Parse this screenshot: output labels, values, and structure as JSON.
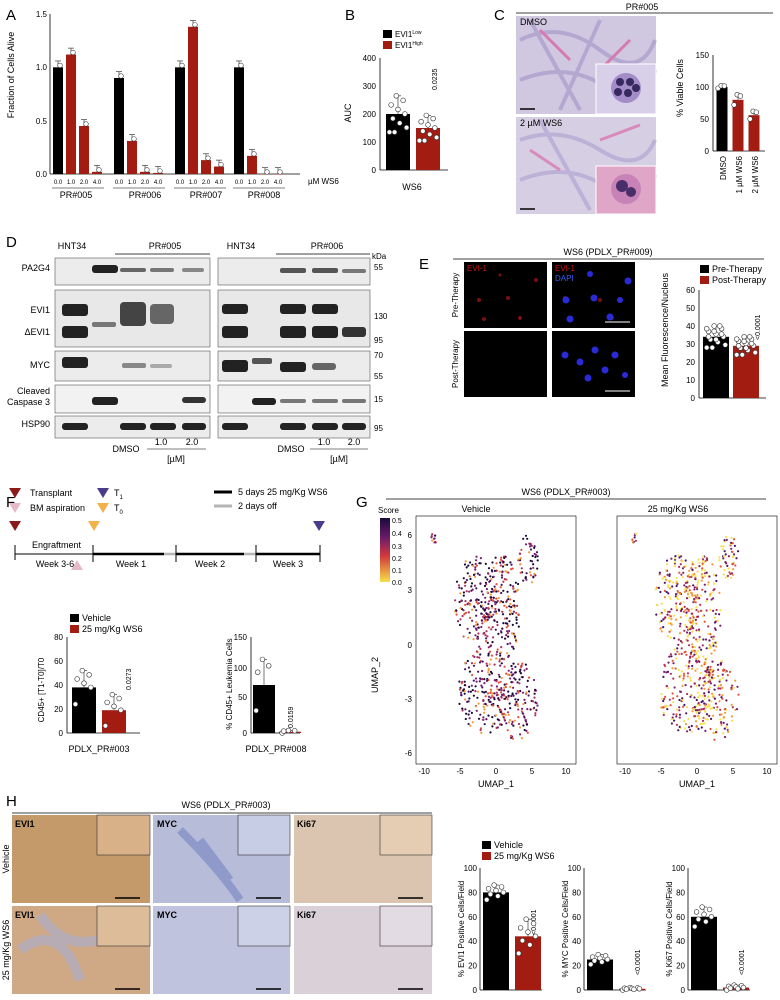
{
  "colors": {
    "red": "#a21c12",
    "black": "#000000",
    "gray": "#b5b5b5"
  },
  "panels": {
    "A": {
      "letter": "A",
      "ylabel": "Fraction of Cells Alive",
      "yticks": [
        "0.0",
        "0.5",
        "1.0",
        "1.5"
      ],
      "unit": "µM WS6",
      "doses": [
        "0.0",
        "1.0",
        "2.0",
        "4.0"
      ],
      "groups": [
        "PR#005",
        "PR#006",
        "PR#007",
        "PR#008"
      ]
    },
    "B": {
      "letter": "B",
      "ylabel": "AUC",
      "yticks": [
        "0",
        "100",
        "200",
        "300",
        "400"
      ],
      "legend": [
        "EVI1",
        "EVI1"
      ],
      "legend_sup": [
        "Low",
        "High"
      ],
      "pvalue": "0.0235",
      "xlabel": "WS6"
    },
    "C": {
      "letter": "C",
      "title": "PR#005",
      "img_labels": [
        "DMSO",
        "2 µM WS6"
      ],
      "ylabel": "% Viable Cells",
      "yticks": [
        "0",
        "50",
        "100",
        "150"
      ],
      "xticks": [
        "DMSO",
        "1 µM WS6",
        "2 µM WS6"
      ]
    },
    "D": {
      "letter": "D",
      "headers": [
        "HNT34",
        "PR#005",
        "HNT34",
        "PR#006"
      ],
      "kda": "kDa",
      "rows": [
        "PA2G4",
        "EVI1",
        "ΔEVI1",
        "MYC",
        "Cleaved",
        "Caspase 3",
        "HSP90"
      ],
      "markers": [
        "55",
        "130",
        "95",
        "70",
        "55",
        "15",
        "95"
      ],
      "lanes": [
        "DMSO",
        "1.0",
        "2.0"
      ],
      "conc": "[µM]"
    },
    "E": {
      "letter": "E",
      "title": "WS6 (PDLX_PR#009)",
      "ch1": "EVI-1",
      "ch2": "DAPI",
      "rows": [
        "Pre-Therapy",
        "Post-Therapy"
      ],
      "legend": [
        "Pre-Therapy",
        "Post-Therapy"
      ],
      "ylabel": "Mean Fluorescence/Nucleus",
      "yticks": [
        "0",
        "10",
        "20",
        "30",
        "40",
        "50",
        "60"
      ],
      "pvalue": "<0.0001"
    },
    "F": {
      "letter": "F",
      "legend": [
        "Transplant",
        "BM aspiration",
        "T",
        "T"
      ],
      "legend_sub": [
        "1",
        "0"
      ],
      "schedule": [
        "5 days 25 mg/Kg WS6",
        "2 days off"
      ],
      "engraftment": "Engraftment",
      "weeks": [
        "Week 3-6",
        "Week 1",
        "Week 2",
        "Week 3"
      ],
      "left_legend": [
        "Vehicle",
        "25 mg/Kg WS6"
      ],
      "left_ylabel": "CD45+ [T1-T0]/T0",
      "left_yticks": [
        "0",
        "20",
        "40",
        "60",
        "80"
      ],
      "left_p": "0.0273",
      "left_x": "PDLX_PR#003",
      "right_ylabel": "% CD45+ Leukemia Cells",
      "right_yticks": [
        "0",
        "50",
        "100",
        "150"
      ],
      "right_p": "0.0159",
      "right_x": "PDLX_PR#008"
    },
    "G": {
      "letter": "G",
      "title": "WS6 (PDLX_PR#003)",
      "panels": [
        "Vehicle",
        "25 mg/Kg WS6"
      ],
      "score": "Score",
      "scale": [
        "0.5",
        "0.4",
        "0.3",
        "0.2",
        "0.1",
        "0.0"
      ],
      "xlabel": "UMAP_1",
      "ylabel": "UMAP_2",
      "xticks": [
        "-10",
        "-5",
        "0",
        "5",
        "10"
      ],
      "yticks": [
        "6",
        "3",
        "0",
        "-3",
        "-6"
      ]
    },
    "H": {
      "letter": "H",
      "title": "WS6 (PDLX_PR#003)",
      "rows": [
        "Vehicle",
        "25 mg/Kg WS6"
      ],
      "stains": [
        "EVI1",
        "MYC",
        "Ki67"
      ],
      "legend": [
        "Vehicle",
        "25 mg/Kg WS6"
      ],
      "ylabels": [
        "% EVI1 Positive Cells/Field",
        "% MYC Positive Cells/Field",
        "% Ki67 Positive Cells/Field"
      ],
      "yticks": [
        "0",
        "20",
        "40",
        "60",
        "80",
        "100"
      ],
      "pvalues": [
        "<0.0001",
        "<0.0001",
        "<0.0001"
      ]
    }
  },
  "chart_data": [
    {
      "type": "bar",
      "id": "A",
      "categories": [
        "PR#005",
        "PR#006",
        "PR#007",
        "PR#008"
      ],
      "doses": [
        0,
        1,
        2,
        4
      ],
      "series": [
        {
          "name": "PR#005",
          "values": [
            1.0,
            1.12,
            0.45,
            0.02
          ]
        },
        {
          "name": "PR#006",
          "values": [
            0.9,
            0.31,
            0.02,
            0.01
          ]
        },
        {
          "name": "PR#007",
          "values": [
            1.0,
            1.38,
            0.13,
            0.07
          ]
        },
        {
          "name": "PR#008",
          "values": [
            1.0,
            0.17,
            0.0,
            0.0
          ]
        }
      ],
      "ylim": [
        0,
        1.5
      ]
    },
    {
      "type": "bar",
      "id": "B",
      "categories": [
        "EVI1 Low",
        "EVI1 High"
      ],
      "values": [
        200,
        150
      ],
      "ylim": [
        0,
        400
      ]
    },
    {
      "type": "bar",
      "id": "C",
      "categories": [
        "DMSO",
        "1 µM WS6",
        "2 µM WS6"
      ],
      "values": [
        100,
        80,
        56
      ],
      "ylim": [
        0,
        150
      ]
    },
    {
      "type": "bar",
      "id": "E",
      "categories": [
        "Pre-Therapy",
        "Post-Therapy"
      ],
      "values": [
        34,
        29
      ],
      "ylim": [
        0,
        60
      ]
    },
    {
      "type": "bar",
      "id": "F1",
      "categories": [
        "Vehicle",
        "25 mg/Kg WS6"
      ],
      "values": [
        38,
        19
      ],
      "ylim": [
        0,
        80
      ]
    },
    {
      "type": "bar",
      "id": "F2",
      "categories": [
        "Vehicle",
        "25 mg/Kg WS6"
      ],
      "values": [
        75,
        2
      ],
      "ylim": [
        0,
        150
      ]
    },
    {
      "type": "bar",
      "id": "H1",
      "categories": [
        "Vehicle",
        "25 mg/Kg WS6"
      ],
      "values": [
        80,
        44
      ],
      "ylim": [
        0,
        100
      ]
    },
    {
      "type": "bar",
      "id": "H2",
      "categories": [
        "Vehicle",
        "25 mg/Kg WS6"
      ],
      "values": [
        25,
        1
      ],
      "ylim": [
        0,
        100
      ]
    },
    {
      "type": "bar",
      "id": "H3",
      "categories": [
        "Vehicle",
        "25 mg/Kg WS6"
      ],
      "values": [
        60,
        2
      ],
      "ylim": [
        0,
        100
      ]
    }
  ]
}
